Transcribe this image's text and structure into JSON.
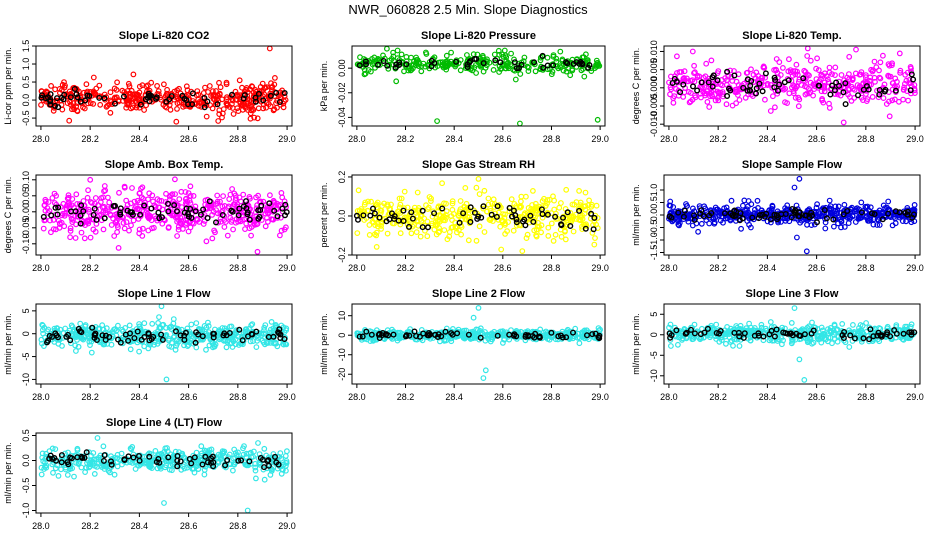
{
  "figure": {
    "title": "NWR_060828  2.5 Min. Slope Diagnostics",
    "overlay_color": "#000000"
  },
  "chart_data": [
    {
      "type": "scatter",
      "title": "Slope Li-820 CO2",
      "ylabel": "Li-cor ppm per min.",
      "color": "#ff0000",
      "xlim": [
        27.98,
        29.02
      ],
      "ylim": [
        -0.72,
        1.5
      ],
      "xticks": [
        "28.0",
        "28.2",
        "28.4",
        "28.6",
        "28.8",
        "29.0"
      ],
      "yticks": [
        {
          "value": -0.5,
          "label": "-0.5"
        },
        {
          "value": 0.0,
          "label": "0.0"
        },
        {
          "value": 0.5,
          "label": "0.5"
        },
        {
          "value": 1.0,
          "label": "1.0"
        },
        {
          "value": 1.5,
          "label": "1.5"
        }
      ],
      "center": 0.05,
      "spread": 0.22,
      "n_points": 420,
      "outliers": [
        {
          "x": 28.93,
          "y": 1.43
        },
        {
          "x": 28.55,
          "y": -0.6
        },
        {
          "x": 28.72,
          "y": -0.58
        }
      ]
    },
    {
      "type": "scatter",
      "title": "Slope Li-820 Pressure",
      "ylabel": "kPa per min.",
      "color": "#00bb00",
      "xlim": [
        27.98,
        29.02
      ],
      "ylim": [
        -0.047,
        0.018
      ],
      "xticks": [
        "28.0",
        "28.2",
        "28.4",
        "28.6",
        "28.8",
        "29.0"
      ],
      "yticks": [
        {
          "value": -0.04,
          "label": "-0.04"
        },
        {
          "value": -0.02,
          "label": "-0.02"
        },
        {
          "value": 0.0,
          "label": "0.00"
        }
      ],
      "center": 0.0035,
      "spread": 0.004,
      "n_points": 300,
      "outliers": [
        {
          "x": 28.33,
          "y": -0.043
        },
        {
          "x": 28.67,
          "y": -0.045
        },
        {
          "x": 28.99,
          "y": -0.042
        }
      ]
    },
    {
      "type": "scatter",
      "title": "Slope Li-820 Temp.",
      "ylabel": "degrees C per min.",
      "color": "#ff00ff",
      "xlim": [
        27.98,
        29.02
      ],
      "ylim": [
        -0.0105,
        0.0115
      ],
      "xticks": [
        "28.0",
        "28.2",
        "28.4",
        "28.6",
        "28.8",
        "29.0"
      ],
      "yticks": [
        {
          "value": -0.01,
          "label": "-0.010"
        },
        {
          "value": -0.005,
          "label": "-0.005"
        },
        {
          "value": 0.0,
          "label": "0.000"
        },
        {
          "value": 0.005,
          "label": "0.005"
        },
        {
          "value": 0.01,
          "label": "0.010"
        }
      ],
      "center": 0.0008,
      "spread": 0.0032,
      "n_points": 420,
      "outliers": [
        {
          "x": 28.76,
          "y": 0.0105
        },
        {
          "x": 28.71,
          "y": -0.0095
        }
      ]
    },
    {
      "type": "scatter",
      "title": "Slope Amb. Box Temp.",
      "ylabel": "degrees C per min.",
      "color": "#ff00ff",
      "xlim": [
        27.98,
        29.02
      ],
      "ylim": [
        -0.135,
        0.115
      ],
      "xticks": [
        "28.0",
        "28.2",
        "28.4",
        "28.6",
        "28.8",
        "29.0"
      ],
      "yticks": [
        {
          "value": -0.1,
          "label": "-0.10"
        },
        {
          "value": -0.05,
          "label": "-0.05"
        },
        {
          "value": 0.0,
          "label": "0.00"
        },
        {
          "value": 0.05,
          "label": "0.05"
        },
        {
          "value": 0.1,
          "label": "0.10"
        }
      ],
      "center": 0.0,
      "spread": 0.035,
      "n_points": 480,
      "outliers": [
        {
          "x": 28.2,
          "y": 0.1
        },
        {
          "x": 28.88,
          "y": -0.125
        }
      ]
    },
    {
      "type": "scatter",
      "title": "Slope Gas Stream RH",
      "ylabel": "percent per min.",
      "color": "#ffff00",
      "xlim": [
        27.98,
        29.02
      ],
      "ylim": [
        -0.2,
        0.21
      ],
      "xticks": [
        "28.0",
        "28.2",
        "28.4",
        "28.6",
        "28.8",
        "29.0"
      ],
      "yticks": [
        {
          "value": -0.2,
          "label": "-0.2"
        },
        {
          "value": 0.0,
          "label": "0.0"
        },
        {
          "value": 0.2,
          "label": "0.2"
        }
      ],
      "center": 0.0,
      "spread": 0.055,
      "n_points": 420,
      "outliers": [
        {
          "x": 28.5,
          "y": 0.19
        },
        {
          "x": 28.68,
          "y": -0.18
        }
      ]
    },
    {
      "type": "scatter",
      "title": "Slope Sample Flow",
      "ylabel": "ml/min per min.",
      "color": "#0000dd",
      "xlim": [
        27.98,
        29.02
      ],
      "ylim": [
        -1.6,
        1.6
      ],
      "xticks": [
        "28.0",
        "28.2",
        "28.4",
        "28.6",
        "28.8",
        "29.0"
      ],
      "yticks": [
        {
          "value": -1.5,
          "label": "-1.5"
        },
        {
          "value": -1.0,
          "label": "-1.0"
        },
        {
          "value": -0.5,
          "label": "-0.5"
        },
        {
          "value": 0.0,
          "label": "0.0"
        },
        {
          "value": 0.5,
          "label": "0.5"
        },
        {
          "value": 1.0,
          "label": "1.0"
        }
      ],
      "center": 0.0,
      "spread": 0.2,
      "n_points": 480,
      "outliers": [
        {
          "x": 28.53,
          "y": 1.45
        },
        {
          "x": 28.51,
          "y": 1.1
        },
        {
          "x": 28.56,
          "y": -1.45
        },
        {
          "x": 28.52,
          "y": -0.9
        }
      ]
    },
    {
      "type": "scatter",
      "title": "Slope Line 1 Flow",
      "ylabel": "ml/min per min.",
      "color": "#33e6e6",
      "xlim": [
        27.98,
        29.02
      ],
      "ylim": [
        -11,
        6.5
      ],
      "xticks": [
        "28.0",
        "28.2",
        "28.4",
        "28.6",
        "28.8",
        "29.0"
      ],
      "yticks": [
        {
          "value": -10,
          "label": "-10"
        },
        {
          "value": -5,
          "label": "-5"
        },
        {
          "value": 0,
          "label": "0"
        },
        {
          "value": 5,
          "label": "5"
        }
      ],
      "center": -0.5,
      "spread": 1.3,
      "n_points": 480,
      "outliers": [
        {
          "x": 28.49,
          "y": 6.0
        },
        {
          "x": 28.51,
          "y": -10
        },
        {
          "x": 28.54,
          "y": 3.2
        }
      ]
    },
    {
      "type": "scatter",
      "title": "Slope Line 2 Flow",
      "ylabel": "ml/min per min.",
      "color": "#33e6e6",
      "xlim": [
        27.98,
        29.02
      ],
      "ylim": [
        -25,
        16
      ],
      "xticks": [
        "28.0",
        "28.2",
        "28.4",
        "28.6",
        "28.8",
        "29.0"
      ],
      "yticks": [
        {
          "value": -20,
          "label": "-20"
        },
        {
          "value": -10,
          "label": "-10"
        },
        {
          "value": 0,
          "label": "0"
        },
        {
          "value": 10,
          "label": "10"
        }
      ],
      "center": 0.0,
      "spread": 1.4,
      "n_points": 440,
      "outliers": [
        {
          "x": 28.5,
          "y": 14
        },
        {
          "x": 28.52,
          "y": -22
        },
        {
          "x": 28.48,
          "y": 9
        },
        {
          "x": 28.53,
          "y": -18
        }
      ]
    },
    {
      "type": "scatter",
      "title": "Slope Line 3 Flow",
      "ylabel": "ml/min per min.",
      "color": "#33e6e6",
      "xlim": [
        27.98,
        29.02
      ],
      "ylim": [
        -12,
        7.5
      ],
      "xticks": [
        "28.0",
        "28.2",
        "28.4",
        "28.6",
        "28.8",
        "29.0"
      ],
      "yticks": [
        {
          "value": -10,
          "label": "-10"
        },
        {
          "value": -5,
          "label": "-5"
        },
        {
          "value": 0,
          "label": "0"
        },
        {
          "value": 5,
          "label": "5"
        }
      ],
      "center": 0.3,
      "spread": 1.1,
      "n_points": 440,
      "outliers": [
        {
          "x": 28.55,
          "y": -11
        },
        {
          "x": 28.51,
          "y": 6.5
        },
        {
          "x": 28.53,
          "y": -6
        }
      ]
    },
    {
      "type": "scatter",
      "title": "Slope Line 4 (LT) Flow",
      "ylabel": "ml/min per min.",
      "color": "#33e6e6",
      "xlim": [
        27.98,
        29.02
      ],
      "ylim": [
        -1.05,
        0.55
      ],
      "xticks": [
        "28.0",
        "28.2",
        "28.4",
        "28.6",
        "28.8",
        "29.0"
      ],
      "yticks": [
        {
          "value": -1.0,
          "label": "-1.0"
        },
        {
          "value": -0.5,
          "label": "-0.5"
        },
        {
          "value": 0.0,
          "label": "0.0"
        },
        {
          "value": 0.5,
          "label": "0.5"
        }
      ],
      "center": 0.0,
      "spread": 0.12,
      "n_points": 420,
      "outliers": [
        {
          "x": 28.5,
          "y": -0.85
        },
        {
          "x": 28.84,
          "y": -1.0
        },
        {
          "x": 28.23,
          "y": 0.45
        }
      ]
    }
  ]
}
